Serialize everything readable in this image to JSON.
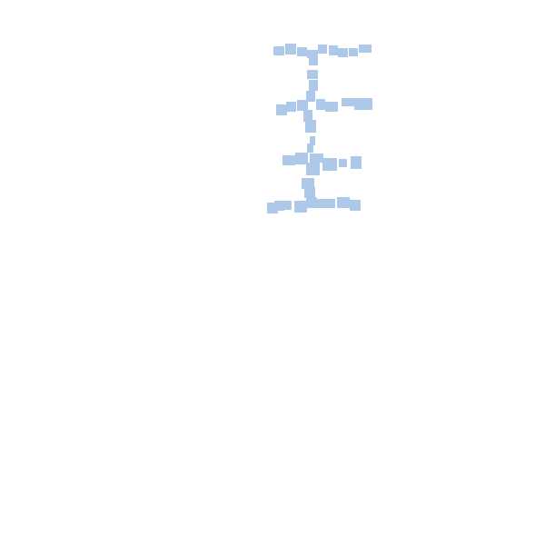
{
  "canvas": {
    "background": "#ffffff"
  },
  "glyph": {
    "color": "#aec8e9",
    "description_hidden": false
  }
}
